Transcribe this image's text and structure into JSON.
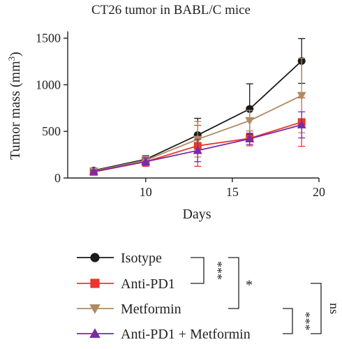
{
  "chart_data": {
    "type": "line",
    "title": "CT26 tumor in BABL/C mice",
    "xlabel": "Days",
    "ylabel_base": "Tumor mass (mm",
    "ylabel_sup": "3",
    "ylabel_close": ")",
    "xlim": [
      5.5,
      20
    ],
    "ylim": [
      0,
      1550
    ],
    "xticks": [
      10,
      15,
      20
    ],
    "xtick_labels": [
      "10",
      "15",
      "20"
    ],
    "yticks": [
      0,
      500,
      1000,
      1500
    ],
    "ytick_labels": [
      "0",
      "500",
      "1000",
      "1500"
    ],
    "x": [
      7,
      10,
      13,
      16,
      19
    ],
    "series": [
      {
        "name": "Isotype",
        "color": "#1a1a1a",
        "marker": "circle",
        "values": [
          80,
          200,
          460,
          740,
          1255
        ],
        "errors": [
          20,
          40,
          180,
          270,
          240
        ]
      },
      {
        "name": "Anti-PD1",
        "color": "#e8382b",
        "marker": "square",
        "values": [
          65,
          175,
          345,
          425,
          600
        ],
        "errors": [
          15,
          50,
          220,
          80,
          260
        ]
      },
      {
        "name": "Metformin",
        "color": "#b08a64",
        "marker": "triangle-down",
        "values": [
          75,
          190,
          415,
          615,
          885
        ],
        "errors": [
          15,
          45,
          190,
          110,
          400
        ]
      },
      {
        "name": "Anti-PD1 + Metformin",
        "color": "#7a2aa8",
        "marker": "triangle-up",
        "values": [
          70,
          175,
          295,
          420,
          570
        ],
        "errors": [
          15,
          40,
          120,
          60,
          140
        ]
      }
    ],
    "legend_position": "bottom",
    "significance": [
      {
        "label": "***",
        "between": [
          "Isotype",
          "Anti-PD1"
        ]
      },
      {
        "label": "*",
        "between": [
          "Isotype",
          "Metformin"
        ]
      },
      {
        "label": "***",
        "between": [
          "Metformin",
          "Anti-PD1 + Metformin"
        ]
      },
      {
        "label": "ns",
        "between": [
          "Anti-PD1",
          "Anti-PD1 + Metformin"
        ]
      }
    ],
    "grid": false
  }
}
